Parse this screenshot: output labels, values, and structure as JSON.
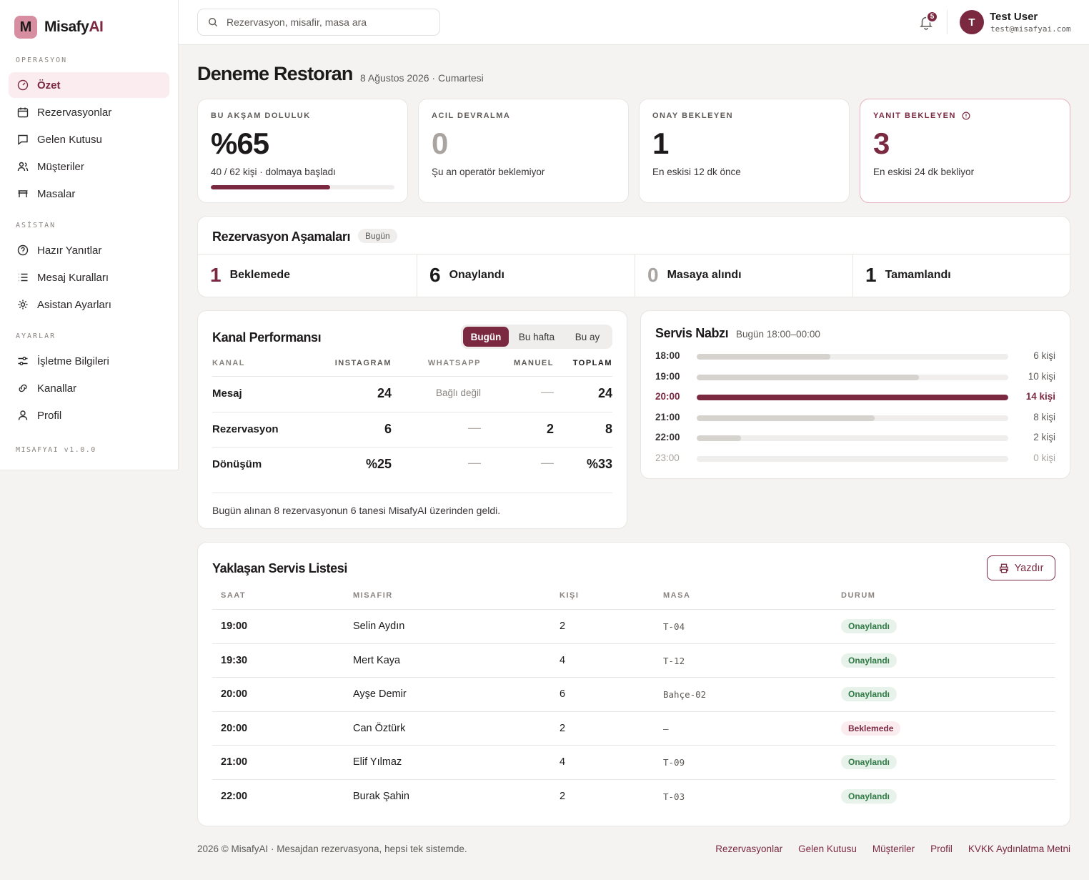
{
  "brand": {
    "mark": "M",
    "name": "Misafy",
    "name_accent": "AI"
  },
  "sidebar": {
    "sections": [
      "OPERASYON",
      "ASİSTAN",
      "AYARLAR"
    ],
    "items": [
      {
        "label": "Özet",
        "icon": "dashboard-icon"
      },
      {
        "label": "Rezervasyonlar",
        "icon": "calendar-icon"
      },
      {
        "label": "Gelen Kutusu",
        "icon": "chat-icon"
      },
      {
        "label": "Müşteriler",
        "icon": "users-icon"
      },
      {
        "label": "Masalar",
        "icon": "table-icon"
      },
      {
        "label": "Hazır Yanıtlar",
        "icon": "help-circle-icon"
      },
      {
        "label": "Mesaj Kuralları",
        "icon": "list-icon"
      },
      {
        "label": "Asistan Ayarları",
        "icon": "sun-icon"
      },
      {
        "label": "İşletme Bilgileri",
        "icon": "sliders-icon"
      },
      {
        "label": "Kanallar",
        "icon": "link-icon"
      },
      {
        "label": "Profil",
        "icon": "user-icon"
      }
    ],
    "version": "MISAFYAI v1.0.0"
  },
  "topbar": {
    "search_placeholder": "Rezervasyon, misafir, masa ara",
    "notifications": "5",
    "user_initial": "T",
    "user_name": "Test User",
    "user_email": "test@misafyai.com"
  },
  "page": {
    "title": "Deneme Restoran",
    "date": "8 Ağustos 2026 · Cumartesi"
  },
  "kpis": [
    {
      "label": "BU AKŞAM DOLULUK",
      "value": "%65",
      "sub": "40 / 62 kişi · dolmaya başladı",
      "progress": 0.65
    },
    {
      "label": "ACIL DEVRALMA",
      "value": "0",
      "sub": "Şu an operatör beklemiyor"
    },
    {
      "label": "ONAY BEKLEYEN",
      "value": "1",
      "sub": "En eskisi 12 dk önce"
    },
    {
      "label": "YANIT BEKLEYEN",
      "value": "3",
      "sub": "En eskisi 24 dk bekliyor"
    }
  ],
  "stages": {
    "title": "Rezervasyon Aşamaları",
    "pill": "Bugün",
    "items": [
      {
        "num": "1",
        "label": "Beklemede"
      },
      {
        "num": "6",
        "label": "Onaylandı"
      },
      {
        "num": "0",
        "label": "Masaya alındı"
      },
      {
        "num": "1",
        "label": "Tamamlandı"
      }
    ]
  },
  "channels": {
    "title": "Kanal Performansı",
    "tabs": [
      "Bugün",
      "Bu hafta",
      "Bu ay"
    ],
    "headers": [
      "KANAL",
      "INSTAGRAM",
      "WHATSAPP",
      "MANUEL",
      "TOPLAM"
    ],
    "rows": [
      {
        "name": "Mesaj",
        "instagram": "24",
        "whatsapp": "Bağlı değil",
        "manuel": "—",
        "total": "24"
      },
      {
        "name": "Rezervasyon",
        "instagram": "6",
        "whatsapp": "—",
        "manuel": "2",
        "total": "8"
      },
      {
        "name": "Dönüşüm",
        "instagram": "%25",
        "whatsapp": "—",
        "manuel": "—",
        "total": "%33"
      }
    ],
    "note": "Bugün alınan 8 rezervasyonun 6 tanesi MisafyAI üzerinden geldi."
  },
  "pulse": {
    "title": "Servis Nabzı",
    "subtitle": "Bugün 18:00–00:00",
    "max": 14,
    "rows": [
      {
        "time": "18:00",
        "count": 6,
        "label": "6 kişi"
      },
      {
        "time": "19:00",
        "count": 10,
        "label": "10 kişi"
      },
      {
        "time": "20:00",
        "count": 14,
        "label": "14 kişi"
      },
      {
        "time": "21:00",
        "count": 8,
        "label": "8 kişi"
      },
      {
        "time": "22:00",
        "count": 2,
        "label": "2 kişi"
      },
      {
        "time": "23:00",
        "count": 0,
        "label": "0 kişi"
      }
    ]
  },
  "upcoming": {
    "title": "Yaklaşan Servis Listesi",
    "print_label": "Yazdır",
    "headers": [
      "SAAT",
      "MISAFIR",
      "KIŞI",
      "MASA",
      "DURUM"
    ],
    "rows": [
      {
        "time": "19:00",
        "guest": "Selin Aydın",
        "people": "2",
        "table": "T-04",
        "status": "Onaylandı"
      },
      {
        "time": "19:30",
        "guest": "Mert Kaya",
        "people": "4",
        "table": "T-12",
        "status": "Onaylandı"
      },
      {
        "time": "20:00",
        "guest": "Ayşe Demir",
        "people": "6",
        "table": "Bahçe-02",
        "status": "Onaylandı"
      },
      {
        "time": "20:00",
        "guest": "Can Öztürk",
        "people": "2",
        "table": "—",
        "status": "Beklemede"
      },
      {
        "time": "21:00",
        "guest": "Elif Yılmaz",
        "people": "4",
        "table": "T-09",
        "status": "Onaylandı"
      },
      {
        "time": "22:00",
        "guest": "Burak Şahin",
        "people": "2",
        "table": "T-03",
        "status": "Onaylandı"
      }
    ]
  },
  "footer": {
    "text": "2026 © MisafyAI · Mesajdan rezervasyona, hepsi tek sistemde.",
    "links": [
      "Rezervasyonlar",
      "Gelen Kutusu",
      "Müşteriler",
      "Profil",
      "KVKK Aydınlatma Metni"
    ]
  },
  "colors": {
    "accent": "#7a2940",
    "brand_mark": "#d88ea1",
    "success": "#2f7a44"
  }
}
